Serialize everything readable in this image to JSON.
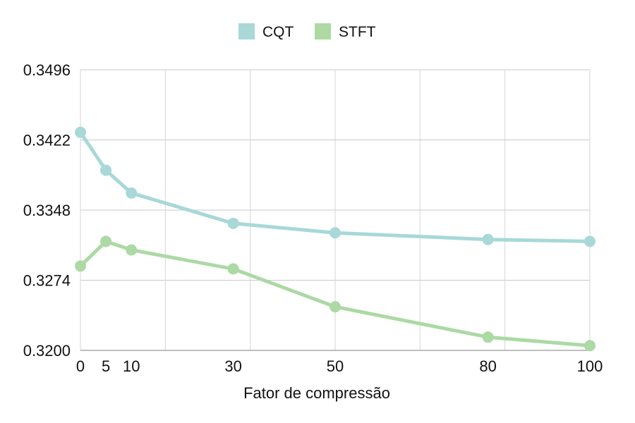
{
  "chart_data": {
    "type": "line",
    "title": "",
    "xlabel": "Fator de compressão",
    "ylabel": "",
    "x": [
      0,
      5,
      10,
      30,
      50,
      80,
      100
    ],
    "x_tick_labels": [
      "0",
      "5",
      "10",
      "30",
      "50",
      "80",
      "100"
    ],
    "y_tick_labels": [
      "0.3200",
      "0.3274",
      "0.3348",
      "0.3422",
      "0.3496"
    ],
    "xlim": [
      0,
      100
    ],
    "ylim": [
      0.32,
      0.3496
    ],
    "grid": true,
    "legend_position": "top-center",
    "series": [
      {
        "name": "CQT",
        "color": "#a8d8d8",
        "values": [
          0.343,
          0.339,
          0.3366,
          0.3334,
          0.3324,
          0.3317,
          0.3315
        ]
      },
      {
        "name": "STFT",
        "color": "#acd9a4",
        "values": [
          0.3289,
          0.3315,
          0.3306,
          0.3286,
          0.3246,
          0.3214,
          0.3205
        ]
      }
    ]
  }
}
